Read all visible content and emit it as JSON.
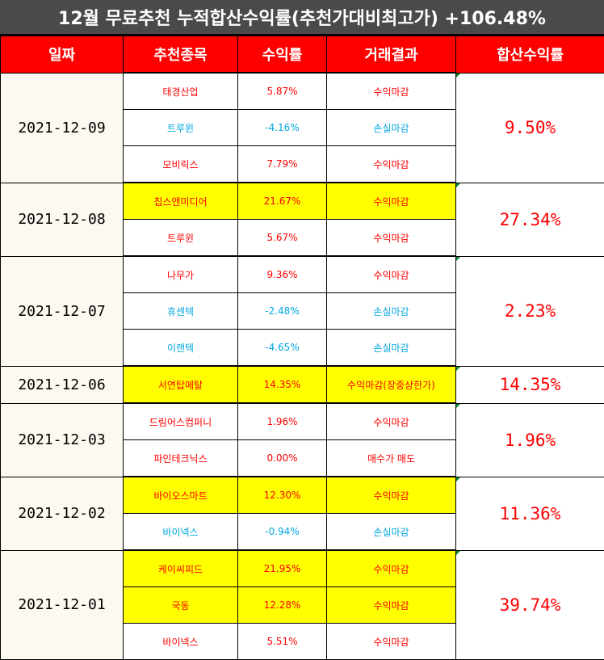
{
  "title": "12월 무료추천 누적합산수익률(추천가대비최고가) +106.48%",
  "headers": [
    "일짜",
    "추천종목",
    "수익률",
    "거래결과",
    "합산수익률"
  ],
  "groups": [
    {
      "date": "2021-12-09",
      "total": "9.50%",
      "rows": [
        {
          "stock": "태경산업",
          "rate": "5.87%",
          "result": "수익마감",
          "color": "red",
          "highlight": false
        },
        {
          "stock": "트루윈",
          "rate": "-4.16%",
          "result": "손실마감",
          "color": "blue",
          "highlight": false
        },
        {
          "stock": "모비릭스",
          "rate": "7.79%",
          "result": "수익마감",
          "color": "red",
          "highlight": false
        }
      ]
    },
    {
      "date": "2021-12-08",
      "total": "27.34%",
      "rows": [
        {
          "stock": "칩스앤미디어",
          "rate": "21.67%",
          "result": "수익마감",
          "color": "red",
          "highlight": true
        },
        {
          "stock": "트루윈",
          "rate": "5.67%",
          "result": "수익마감",
          "color": "red",
          "highlight": false
        }
      ]
    },
    {
      "date": "2021-12-07",
      "total": "2.23%",
      "rows": [
        {
          "stock": "나무가",
          "rate": "9.36%",
          "result": "수익마감",
          "color": "red",
          "highlight": false
        },
        {
          "stock": "휴센텍",
          "rate": "-2.48%",
          "result": "손실마감",
          "color": "blue",
          "highlight": false
        },
        {
          "stock": "이랜텍",
          "rate": "-4.65%",
          "result": "손실마감",
          "color": "blue",
          "highlight": false
        }
      ]
    },
    {
      "date": "2021-12-06",
      "total": "14.35%",
      "rows": [
        {
          "stock": "서연탑메탈",
          "rate": "14.35%",
          "result": "수익마감(장중상한가)",
          "color": "red",
          "highlight": true
        }
      ]
    },
    {
      "date": "2021-12-03",
      "total": "1.96%",
      "rows": [
        {
          "stock": "드림어스컴퍼니",
          "rate": "1.96%",
          "result": "수익마감",
          "color": "red",
          "highlight": false
        },
        {
          "stock": "파인테크닉스",
          "rate": "0.00%",
          "result": "매수가 매도",
          "color": "red",
          "highlight": false
        }
      ]
    },
    {
      "date": "2021-12-02",
      "total": "11.36%",
      "rows": [
        {
          "stock": "바이오스마트",
          "rate": "12.30%",
          "result": "수익마감",
          "color": "red",
          "highlight": true
        },
        {
          "stock": "바이넥스",
          "rate": "-0.94%",
          "result": "손실마감",
          "color": "blue",
          "highlight": false
        }
      ]
    },
    {
      "date": "2021-12-01",
      "total": "39.74%",
      "rows": [
        {
          "stock": "케이씨피드",
          "rate": "21.95%",
          "result": "수익마감",
          "color": "red",
          "highlight": true
        },
        {
          "stock": "국동",
          "rate": "12.28%",
          "result": "수익마감",
          "color": "red",
          "highlight": true
        },
        {
          "stock": "바이넥스",
          "rate": "5.51%",
          "result": "수익마감",
          "color": "red",
          "highlight": false
        }
      ]
    }
  ],
  "colors": {
    "header_bg": "#ff0000",
    "title_bg": "#4a4a4a",
    "highlight": "#ffff00",
    "profit": "#ff0000",
    "loss": "#00a6e0"
  }
}
